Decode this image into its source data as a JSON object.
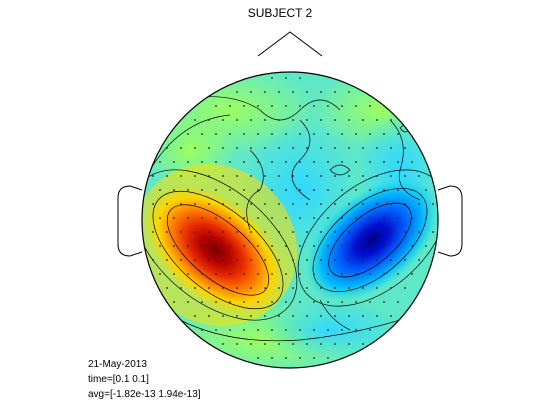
{
  "figure": {
    "title": "SUBJECT 2",
    "date": "21-May-2013",
    "time_label": "time=[0.1 0.1]",
    "avg_label": "avg=[-1.82e-13 1.94e-13]"
  },
  "colormap": "jet",
  "sources": [
    {
      "name": "positive-pole",
      "sign": 1,
      "strength": 1.0
    },
    {
      "name": "negative-pole",
      "sign": -1,
      "strength": 1.0
    }
  ]
}
